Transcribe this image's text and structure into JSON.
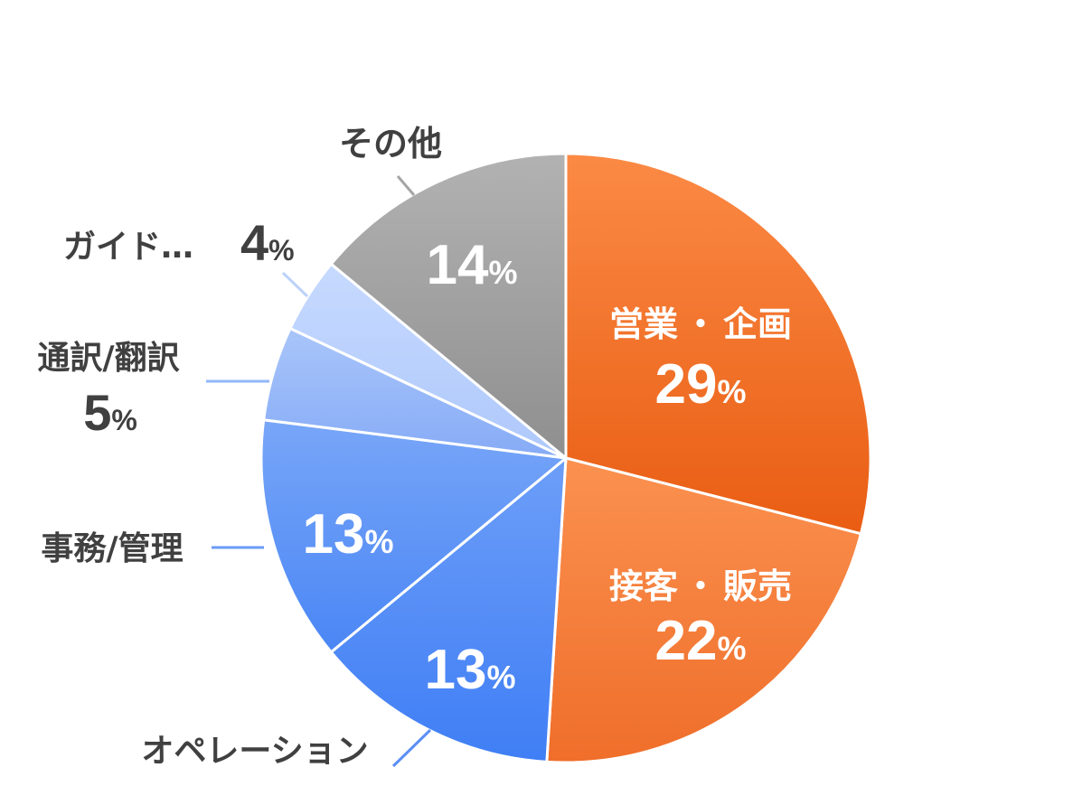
{
  "chart_data": {
    "type": "pie",
    "percent_suffix": "%",
    "slices": [
      {
        "label": "営業・企画",
        "label_parts": [
          "営業",
          "・",
          "企画"
        ],
        "value": 29,
        "color": "#f4712a"
      },
      {
        "label": "接客・販売",
        "label_parts": [
          "接客",
          "・",
          "販売"
        ],
        "value": 22,
        "color": "#f4853f"
      },
      {
        "label": "オペレーション",
        "value": 13,
        "color": "#5b8ff5"
      },
      {
        "label": "事務/管理",
        "value": 13,
        "color": "#6a9bf6"
      },
      {
        "label": "通訳/翻訳",
        "value": 5,
        "color": "#93b6f8"
      },
      {
        "label": "ガイド…",
        "value": 4,
        "color": "#bcd2fb"
      },
      {
        "label": "その他",
        "value": 14,
        "color": "#a5a5a5"
      }
    ],
    "legend": "none"
  }
}
